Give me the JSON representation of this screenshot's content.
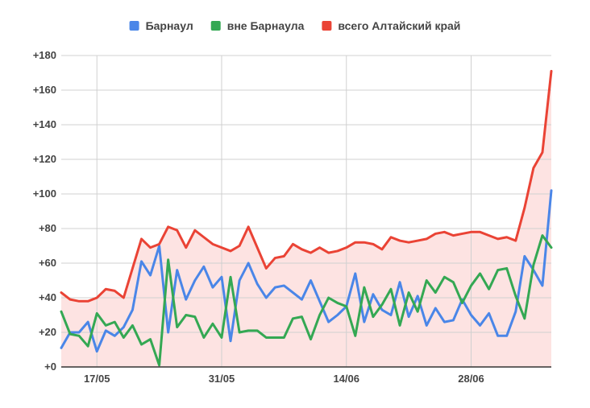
{
  "chart_data": {
    "type": "line",
    "title": "",
    "xlabel": "",
    "ylabel": "",
    "ylim": [
      0,
      180
    ],
    "y_ticks": [
      0,
      20,
      40,
      60,
      80,
      100,
      120,
      140,
      160,
      180
    ],
    "y_tick_labels": [
      "+0",
      "+20",
      "+40",
      "+60",
      "+80",
      "+100",
      "+120",
      "+140",
      "+160",
      "+180"
    ],
    "x_tick_labels": [
      "17/05",
      "31/05",
      "14/06",
      "28/06"
    ],
    "x_tick_index": [
      4,
      18,
      32,
      46
    ],
    "point_count": 56,
    "grid": true,
    "legend_position": "top",
    "series": [
      {
        "name": "Барнаул",
        "color": "#4a86e8",
        "values": [
          11,
          20,
          20,
          26,
          9,
          21,
          18,
          23,
          33,
          61,
          53,
          70,
          20,
          56,
          39,
          50,
          58,
          46,
          52,
          15,
          50,
          60,
          48,
          40,
          46,
          47,
          43,
          39,
          50,
          38,
          26,
          30,
          35,
          54,
          26,
          42,
          33,
          30,
          49,
          29,
          41,
          24,
          34,
          26,
          27,
          39,
          30,
          24,
          31,
          18,
          18,
          32,
          64,
          56,
          47,
          102
        ]
      },
      {
        "name": "вне Барнаула",
        "color": "#34a853",
        "values": [
          32,
          19,
          18,
          12,
          31,
          24,
          26,
          17,
          24,
          13,
          16,
          1,
          62,
          23,
          30,
          29,
          17,
          25,
          17,
          52,
          20,
          21,
          21,
          17,
          17,
          17,
          28,
          29,
          16,
          30,
          40,
          37,
          35,
          18,
          46,
          29,
          36,
          45,
          24,
          43,
          32,
          50,
          43,
          52,
          49,
          37,
          47,
          54,
          45,
          56,
          57,
          41,
          28,
          59,
          76,
          69
        ]
      },
      {
        "name": "всего Алтайский край",
        "color": "#ea4335",
        "values": [
          43,
          39,
          38,
          38,
          40,
          45,
          44,
          40,
          57,
          74,
          69,
          71,
          81,
          79,
          69,
          79,
          75,
          71,
          69,
          67,
          70,
          81,
          69,
          57,
          63,
          64,
          71,
          68,
          66,
          69,
          66,
          67,
          69,
          72,
          72,
          71,
          68,
          75,
          73,
          72,
          73,
          74,
          77,
          78,
          76,
          77,
          78,
          78,
          76,
          74,
          75,
          73,
          92,
          115,
          124,
          171
        ]
      }
    ],
    "area_fill": {
      "series": "всего Алтайский край",
      "color": "#fde3e2"
    }
  }
}
